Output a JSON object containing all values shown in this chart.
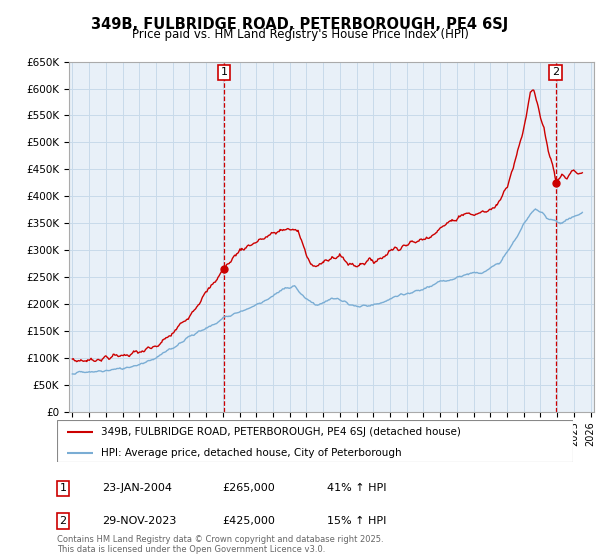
{
  "title": "349B, FULBRIDGE ROAD, PETERBOROUGH, PE4 6SJ",
  "subtitle": "Price paid vs. HM Land Registry's House Price Index (HPI)",
  "ylabel_ticks": [
    "£0",
    "£50K",
    "£100K",
    "£150K",
    "£200K",
    "£250K",
    "£300K",
    "£350K",
    "£400K",
    "£450K",
    "£500K",
    "£550K",
    "£600K",
    "£650K"
  ],
  "ylim": [
    0,
    650000
  ],
  "xlim_start": 1994.8,
  "xlim_end": 2026.2,
  "sale1_x": 2004.07,
  "sale1_y": 265000,
  "sale1_label": "1",
  "sale2_x": 2023.91,
  "sale2_y": 425000,
  "sale2_label": "2",
  "line_color_red": "#cc0000",
  "line_color_blue": "#7aadd4",
  "grid_color": "#c8daea",
  "bg_color": "#ddeeff",
  "plot_bg": "#e8f0f8",
  "legend_line1": "349B, FULBRIDGE ROAD, PETERBOROUGH, PE4 6SJ (detached house)",
  "legend_line2": "HPI: Average price, detached house, City of Peterborough",
  "annotation1_date": "23-JAN-2004",
  "annotation1_price": "£265,000",
  "annotation1_hpi": "41% ↑ HPI",
  "annotation2_date": "29-NOV-2023",
  "annotation2_price": "£425,000",
  "annotation2_hpi": "15% ↑ HPI",
  "footer": "Contains HM Land Registry data © Crown copyright and database right 2025.\nThis data is licensed under the Open Government Licence v3.0."
}
